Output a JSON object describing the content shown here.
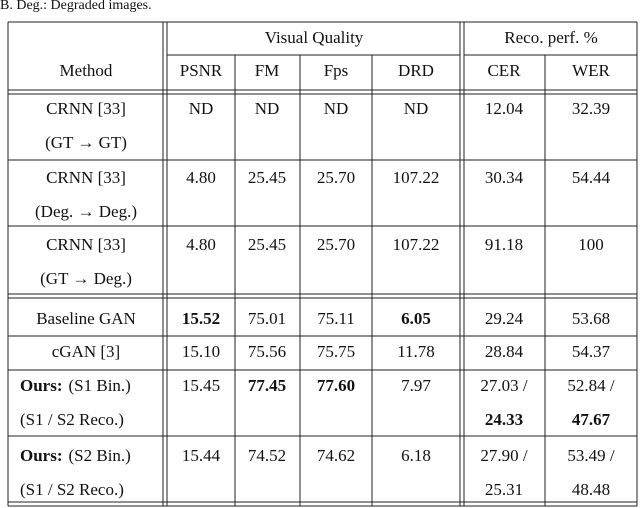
{
  "header": {
    "caption": "B. Deg.: Degraded images.",
    "group1": "Visual Quality",
    "group2": "Reco. perf. %",
    "columns": [
      "Method",
      "PSNR",
      "FM",
      "Fps",
      "DRD",
      "CER",
      "WER"
    ]
  },
  "table": {
    "rows": [
      {
        "method": [
          "CRNN [33]",
          "(GT → GT)"
        ],
        "cells": [
          "ND",
          "ND",
          "ND",
          "ND",
          "12.04",
          "32.39"
        ]
      },
      {
        "method": [
          "CRNN [33]",
          "(Deg. → Deg.)"
        ],
        "cells": [
          "4.80",
          "25.45",
          "25.70",
          "107.22",
          "30.34",
          "54.44"
        ]
      },
      {
        "method": [
          "CRNN [33]",
          "(GT → Deg.)"
        ],
        "cells": [
          "4.80",
          "25.45",
          "25.70",
          "107.22",
          "91.18",
          "100"
        ]
      },
      {
        "method": [
          "Baseline GAN"
        ],
        "cells": [
          {
            "text": "15.52",
            "bold": true
          },
          "75.01",
          "75.11",
          {
            "text": "6.05",
            "bold": true
          },
          "29.24",
          "53.68"
        ]
      },
      {
        "method": [
          "cGAN [3]"
        ],
        "cells": [
          "15.10",
          "75.56",
          "75.75",
          "11.78",
          "28.84",
          "54.37"
        ]
      },
      {
        "method_prefix": "Ours:",
        "method": [
          "(S1 Bin.)",
          "(S1 / S2 Reco.)"
        ],
        "cells": [
          "15.45",
          {
            "text": "77.45",
            "bold": true
          },
          {
            "text": "77.60",
            "bold": true
          },
          "7.97",
          [
            "27.03 /",
            {
              "text": "24.33",
              "bold": true
            }
          ],
          [
            "52.84 /",
            {
              "text": "47.67",
              "bold": true
            }
          ]
        ]
      },
      {
        "method_prefix": "Ours:",
        "method": [
          "(S2 Bin.)",
          "(S1 / S2 Reco.)"
        ],
        "cells": [
          "15.44",
          "74.52",
          "74.62",
          "6.18",
          [
            "27.90 /",
            "25.31"
          ],
          [
            "53.49 /",
            "48.48"
          ]
        ]
      }
    ]
  }
}
